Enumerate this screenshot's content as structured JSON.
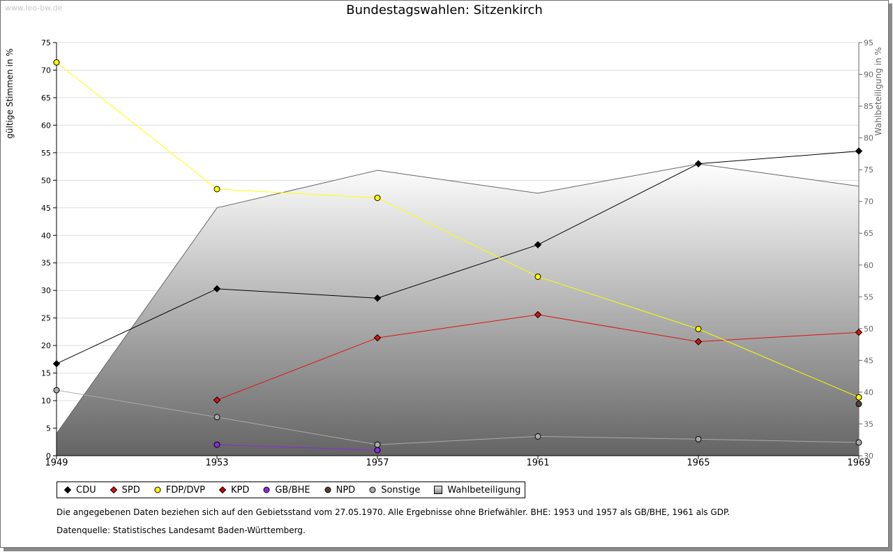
{
  "watermark": "www.leo-bw.de",
  "chart_data": {
    "type": "line",
    "title": "Bundestagswahlen: Sitzenkirch",
    "xlabel": "",
    "ylabel": "gültige Stimmen in %",
    "y2label": "Wahlbeteiligung in %",
    "x": [
      1949,
      1953,
      1957,
      1961,
      1965,
      1969
    ],
    "x_tick_labels": [
      "1949",
      "1953",
      "1957",
      "1961",
      "1965",
      "1969"
    ],
    "ylim": [
      0,
      75
    ],
    "y_ticks": [
      0,
      5,
      10,
      15,
      20,
      25,
      30,
      35,
      40,
      45,
      50,
      55,
      60,
      65,
      70,
      75
    ],
    "y2lim": [
      30,
      95
    ],
    "y2_ticks": [
      30,
      35,
      40,
      45,
      50,
      55,
      60,
      65,
      70,
      75,
      80,
      85,
      90,
      95
    ],
    "grid": true,
    "series": [
      {
        "name": "CDU",
        "color": "#000000",
        "marker": "diamond",
        "values": [
          16.7,
          30.3,
          28.6,
          38.3,
          53.0,
          55.3
        ]
      },
      {
        "name": "SPD",
        "color": "#dd1111",
        "marker": "diamond",
        "values": [
          null,
          10.1,
          21.4,
          25.6,
          20.7,
          22.4
        ]
      },
      {
        "name": "FDP/DVP",
        "color": "#ffff00",
        "marker": "circle",
        "values": [
          71.4,
          48.4,
          46.8,
          32.5,
          23.0,
          10.6
        ]
      },
      {
        "name": "KPD",
        "color": "#cc0000",
        "marker": "diamond",
        "values": [
          null,
          null,
          null,
          null,
          null,
          null
        ]
      },
      {
        "name": "GB/BHE",
        "color": "#8a2be2",
        "marker": "circle",
        "values": [
          null,
          2.0,
          1.0,
          null,
          null,
          null
        ]
      },
      {
        "name": "NPD",
        "color": "#5b4030",
        "marker": "circle",
        "values": [
          null,
          null,
          null,
          null,
          null,
          9.4
        ]
      },
      {
        "name": "Sonstige",
        "color": "#aaaaaa",
        "marker": "circle",
        "values": [
          11.9,
          7.0,
          2.0,
          3.5,
          3.0,
          2.4
        ]
      }
    ],
    "area_series": {
      "name": "Wahlbeteiligung",
      "axis": "right",
      "values": [
        33.5,
        69.0,
        74.9,
        71.3,
        75.9,
        72.4
      ]
    }
  },
  "notes": {
    "line1": "Die angegebenen Daten beziehen sich auf den Gebietsstand vom 27.05.1970. Alle Ergebnisse ohne Briefwähler. BHE: 1953 und 1957 als GB/BHE, 1961 als GDP.",
    "line2": "Datenquelle: Statistisches Landesamt Baden-Württemberg."
  }
}
